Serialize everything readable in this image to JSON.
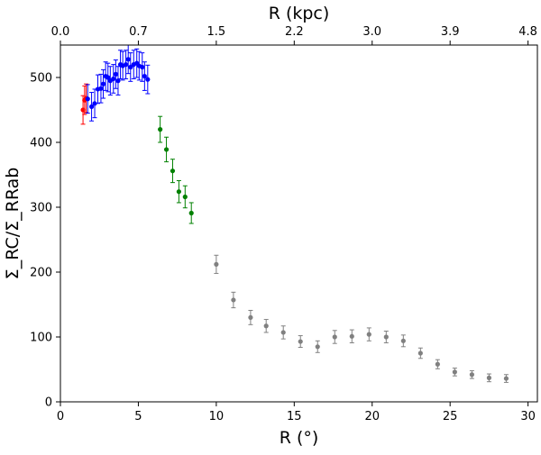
{
  "chart_data": {
    "type": "scatter",
    "xlabel": "R (°)",
    "ylabel": "Σ_RC/Σ_RRab",
    "top_xlabel": "R (kpc)",
    "xlim": [
      0,
      30.6
    ],
    "ylim": [
      0,
      550
    ],
    "x_ticks": [
      0,
      5,
      10,
      15,
      20,
      25,
      30
    ],
    "x_tick_labels": [
      "0",
      "5",
      "10",
      "15",
      "20",
      "25",
      "30"
    ],
    "y_ticks": [
      0,
      100,
      200,
      300,
      400,
      500
    ],
    "y_tick_labels": [
      "0",
      "100",
      "200",
      "300",
      "400",
      "500"
    ],
    "top_x_ticks": [
      0,
      5,
      10,
      15,
      20,
      25,
      30
    ],
    "top_x_tick_labels": [
      "0.0",
      "0.7",
      "1.5",
      "2.2",
      "3.0",
      "3.9",
      "4.8"
    ],
    "grid": false,
    "colors": {
      "red": "#ff0000",
      "blue": "#0000ff",
      "green": "#008000",
      "gray": "#808080"
    },
    "series": [
      {
        "color": "red",
        "points": [
          {
            "x": 1.45,
            "y": 450,
            "err": 22
          },
          {
            "x": 1.55,
            "y": 465,
            "err": 22
          },
          {
            "x": 1.65,
            "y": 468,
            "err": 22
          }
        ]
      },
      {
        "color": "blue",
        "points": [
          {
            "x": 1.75,
            "y": 467,
            "err": 22
          },
          {
            "x": 2.0,
            "y": 455,
            "err": 22
          },
          {
            "x": 2.2,
            "y": 460,
            "err": 22
          },
          {
            "x": 2.4,
            "y": 482,
            "err": 22
          },
          {
            "x": 2.6,
            "y": 483,
            "err": 22
          },
          {
            "x": 2.75,
            "y": 490,
            "err": 22
          },
          {
            "x": 2.9,
            "y": 502,
            "err": 22
          },
          {
            "x": 3.05,
            "y": 500,
            "err": 22
          },
          {
            "x": 3.2,
            "y": 495,
            "err": 22
          },
          {
            "x": 3.4,
            "y": 498,
            "err": 22
          },
          {
            "x": 3.55,
            "y": 505,
            "err": 22
          },
          {
            "x": 3.7,
            "y": 495,
            "err": 22
          },
          {
            "x": 3.85,
            "y": 520,
            "err": 22
          },
          {
            "x": 4.0,
            "y": 518,
            "err": 22
          },
          {
            "x": 4.2,
            "y": 520,
            "err": 22
          },
          {
            "x": 4.35,
            "y": 528,
            "err": 22
          },
          {
            "x": 4.5,
            "y": 516,
            "err": 22
          },
          {
            "x": 4.7,
            "y": 520,
            "err": 22
          },
          {
            "x": 4.9,
            "y": 522,
            "err": 22
          },
          {
            "x": 5.05,
            "y": 518,
            "err": 22
          },
          {
            "x": 5.25,
            "y": 516,
            "err": 22
          },
          {
            "x": 5.4,
            "y": 502,
            "err": 22
          },
          {
            "x": 5.6,
            "y": 497,
            "err": 22
          }
        ]
      },
      {
        "color": "green",
        "points": [
          {
            "x": 6.4,
            "y": 420,
            "err": 20
          },
          {
            "x": 6.8,
            "y": 389,
            "err": 19
          },
          {
            "x": 7.2,
            "y": 356,
            "err": 18
          },
          {
            "x": 7.6,
            "y": 324,
            "err": 17
          },
          {
            "x": 8.0,
            "y": 316,
            "err": 17
          },
          {
            "x": 8.4,
            "y": 291,
            "err": 16
          }
        ]
      },
      {
        "color": "gray",
        "points": [
          {
            "x": 10.0,
            "y": 212,
            "err": 14
          },
          {
            "x": 11.1,
            "y": 157,
            "err": 12
          },
          {
            "x": 12.2,
            "y": 130,
            "err": 11
          },
          {
            "x": 13.2,
            "y": 117,
            "err": 10
          },
          {
            "x": 14.3,
            "y": 107,
            "err": 10
          },
          {
            "x": 15.4,
            "y": 93,
            "err": 9
          },
          {
            "x": 16.5,
            "y": 85,
            "err": 9
          },
          {
            "x": 17.6,
            "y": 100,
            "err": 10
          },
          {
            "x": 18.7,
            "y": 101,
            "err": 10
          },
          {
            "x": 19.8,
            "y": 104,
            "err": 10
          },
          {
            "x": 20.9,
            "y": 100,
            "err": 9
          },
          {
            "x": 22.0,
            "y": 94,
            "err": 9
          },
          {
            "x": 23.1,
            "y": 75,
            "err": 8
          },
          {
            "x": 24.2,
            "y": 58,
            "err": 7
          },
          {
            "x": 25.3,
            "y": 46,
            "err": 6
          },
          {
            "x": 26.4,
            "y": 42,
            "err": 6
          },
          {
            "x": 27.5,
            "y": 37,
            "err": 6
          },
          {
            "x": 28.6,
            "y": 36,
            "err": 6
          }
        ]
      }
    ]
  }
}
